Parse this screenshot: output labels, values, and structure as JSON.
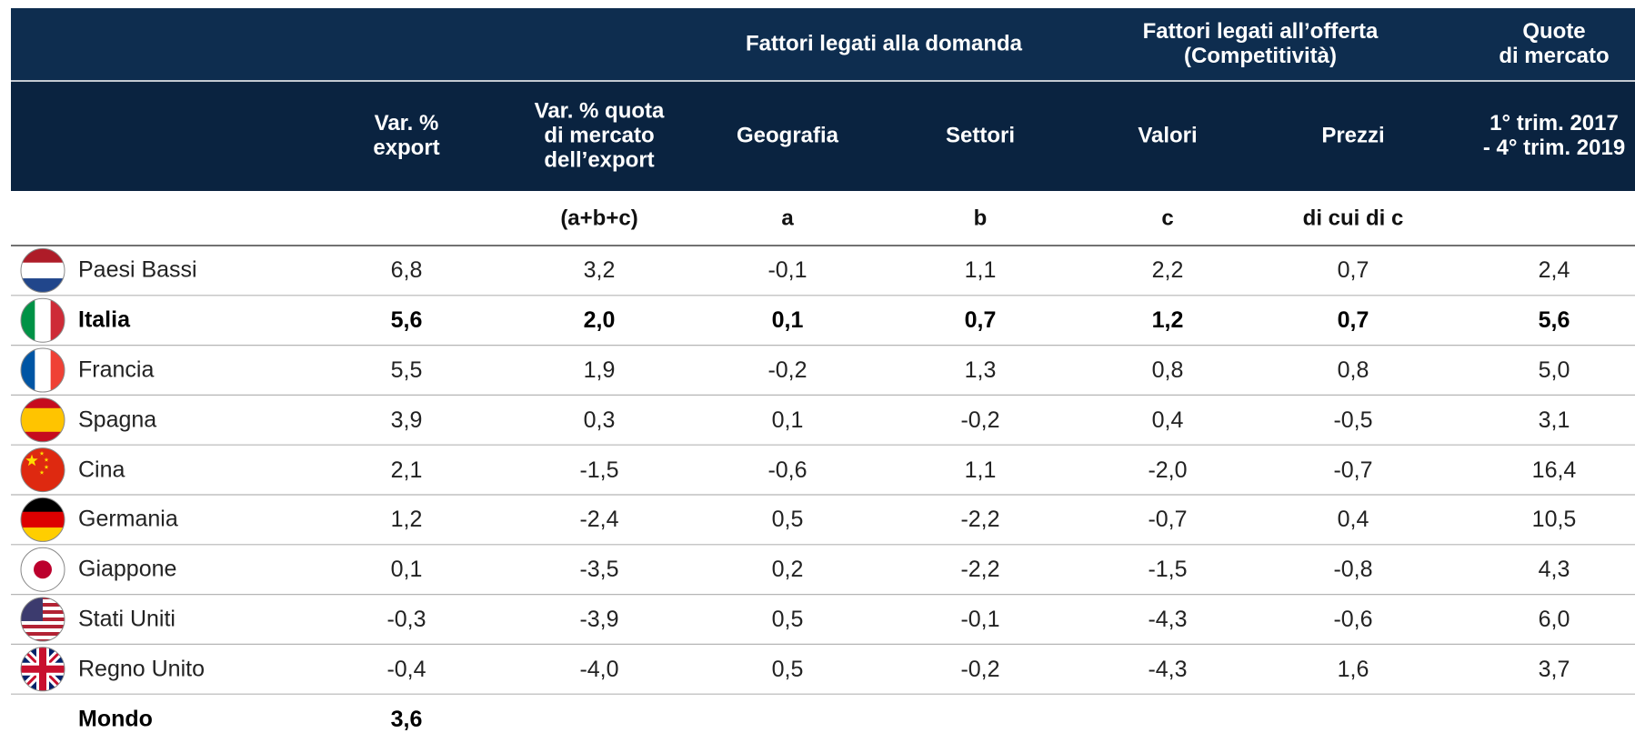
{
  "header": {
    "groups": [
      {
        "label": [
          "Fattori legati alla domanda"
        ]
      },
      {
        "label": [
          "Fattori legati all’offerta",
          "(Competitività)"
        ]
      },
      {
        "label": [
          "Quote",
          "di mercato"
        ]
      }
    ],
    "columns": [
      [
        "Var. %",
        "export"
      ],
      [
        "Var. % quota",
        "di mercato",
        "dell’export"
      ],
      [
        "Geografia"
      ],
      [
        "Settori"
      ],
      [
        "Valori"
      ],
      [
        "Prezzi"
      ],
      [
        "1° trim. 2017",
        "- 4° trim. 2019"
      ]
    ],
    "sublabels": [
      "",
      "(a+b+c)",
      "a",
      "b",
      "c",
      "di cui di c",
      ""
    ]
  },
  "rows": [
    {
      "country": "Paesi Bassi",
      "values": [
        "6,8",
        "3,2",
        "-0,1",
        "1,1",
        "2,2",
        "0,7",
        "2,4"
      ]
    },
    {
      "country": "Italia",
      "values": [
        "5,6",
        "2,0",
        "0,1",
        "0,7",
        "1,2",
        "0,7",
        "5,6"
      ],
      "bold": true
    },
    {
      "country": "Francia",
      "values": [
        "5,5",
        "1,9",
        "-0,2",
        "1,3",
        "0,8",
        "0,8",
        "5,0"
      ]
    },
    {
      "country": "Spagna",
      "values": [
        "3,9",
        "0,3",
        "0,1",
        "-0,2",
        "0,4",
        "-0,5",
        "3,1"
      ]
    },
    {
      "country": "Cina",
      "values": [
        "2,1",
        "-1,5",
        "-0,6",
        "1,1",
        "-2,0",
        "-0,7",
        "16,4"
      ]
    },
    {
      "country": "Germania",
      "values": [
        "1,2",
        "-2,4",
        "0,5",
        "-2,2",
        "-0,7",
        "0,4",
        "10,5"
      ]
    },
    {
      "country": "Giappone",
      "values": [
        "0,1",
        "-3,5",
        "0,2",
        "-2,2",
        "-1,5",
        "-0,8",
        "4,3"
      ]
    },
    {
      "country": "Stati Uniti",
      "values": [
        "-0,3",
        "-3,9",
        "0,5",
        "-0,1",
        "-4,3",
        "-0,6",
        "6,0"
      ]
    },
    {
      "country": "Regno Unito",
      "values": [
        "-0,4",
        "-4,0",
        "0,5",
        "-0,2",
        "-4,3",
        "1,6",
        "3,7"
      ]
    }
  ],
  "total": {
    "country": "Mondo",
    "values": [
      "3,6"
    ],
    "bold": true
  }
}
